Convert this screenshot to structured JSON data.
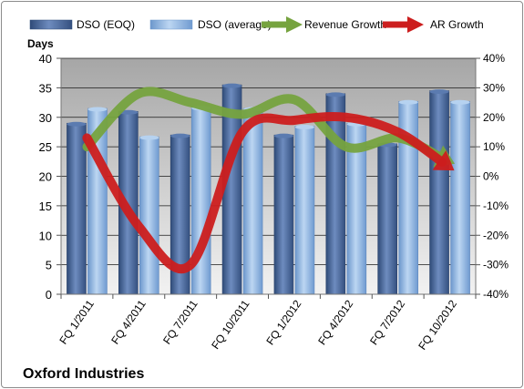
{
  "chart_data": {
    "type": "bar",
    "title": "Oxford Industries",
    "ylabel_left": "Days",
    "categories": [
      "FQ 1/2011",
      "FQ 4/2011",
      "FQ 7/2011",
      "FQ 10/2011",
      "FQ 1/2012",
      "FQ 4/2012",
      "FQ 7/2012",
      "FQ 10/2012"
    ],
    "ylim_left": [
      0,
      40
    ],
    "left_ticks": [
      "0",
      "5",
      "10",
      "15",
      "20",
      "25",
      "30",
      "35",
      "40"
    ],
    "ylim_right": [
      -40,
      40
    ],
    "right_ticks": [
      "-40%",
      "-30%",
      "-20%",
      "-10%",
      "0%",
      "10%",
      "20%",
      "30%",
      "40%"
    ],
    "grid": true,
    "legend_position": "top",
    "bar_series": [
      {
        "name": "DSO (EOQ)",
        "color": "#4a6797",
        "values": [
          29,
          31,
          27,
          35.5,
          27,
          34,
          25.5,
          34.5
        ]
      },
      {
        "name": "DSO (average)",
        "color": "#8fb5e0",
        "values": [
          31.5,
          26.7,
          31.7,
          31.5,
          28.5,
          29,
          32.7,
          32.7
        ]
      }
    ],
    "line_series": [
      {
        "name": "Revenue Growth",
        "axis": "right",
        "color": "#76a33f",
        "values": [
          10,
          28,
          25,
          21,
          26,
          10,
          13,
          5
        ]
      },
      {
        "name": "AR Growth",
        "axis": "right",
        "color": "#cc1e1e",
        "values": [
          13,
          -17,
          -30,
          15,
          19,
          20,
          15,
          3
        ]
      }
    ]
  }
}
